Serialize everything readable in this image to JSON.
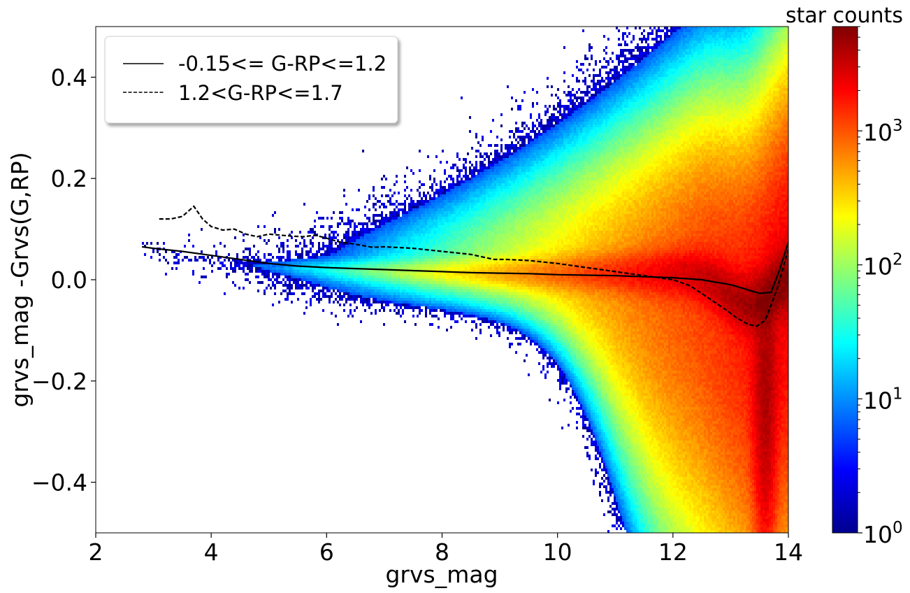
{
  "chart_data": {
    "type": "heatmap",
    "xlabel": "grvs_mag",
    "ylabel": "grvs_mag -Grvs(G,RP)",
    "xlim": [
      2,
      14
    ],
    "ylim": [
      -0.5,
      0.5
    ],
    "x_ticks": [
      2,
      4,
      6,
      8,
      10,
      12,
      14
    ],
    "x_tick_labels": [
      "2",
      "4",
      "6",
      "8",
      "10",
      "12",
      "14"
    ],
    "y_ticks": [
      0.4,
      0.2,
      0.0,
      -0.2,
      -0.4
    ],
    "y_tick_labels": [
      "0.4",
      "0.2",
      "0.0",
      "−0.2",
      "−0.4"
    ],
    "grid": false,
    "colormap": "jet",
    "colorbar": {
      "label": "star counts",
      "scale": "log",
      "range": [
        1,
        6000
      ],
      "ticks": [
        1,
        10,
        100,
        1000
      ],
      "tick_labels": [
        {
          "base": "10",
          "exp": "0"
        },
        {
          "base": "10",
          "exp": "1"
        },
        {
          "base": "10",
          "exp": "2"
        },
        {
          "base": "10",
          "exp": "3"
        }
      ]
    },
    "density_model": {
      "description_values": "approximate 2D histogram: main ridge near y=0.01, spreading wider toward faint magnitudes; upper plume; lower funnel converging near x=13.6",
      "x_range": [
        2.8,
        14
      ],
      "y_range": [
        -0.5,
        0.5
      ]
    },
    "legend": {
      "position": "upper-left",
      "entries": [
        {
          "label": "-0.15<= G-RP<=1.2",
          "style": "solid"
        },
        {
          "label": "1.2<G-RP<=1.7",
          "style": "dashed"
        }
      ]
    },
    "series": [
      {
        "name": "-0.15<= G-RP<=1.2",
        "style": "solid",
        "x": [
          2.8,
          3.0,
          3.5,
          4.0,
          4.5,
          5.0,
          5.5,
          6.0,
          6.5,
          7.0,
          7.5,
          8.0,
          8.5,
          9.0,
          9.5,
          10.0,
          10.5,
          11.0,
          11.5,
          12.0,
          12.5,
          13.0,
          13.3,
          13.5,
          13.7,
          13.85,
          14.0
        ],
        "y": [
          0.065,
          0.062,
          0.056,
          0.048,
          0.04,
          0.032,
          0.027,
          0.024,
          0.022,
          0.02,
          0.018,
          0.016,
          0.014,
          0.013,
          0.012,
          0.01,
          0.009,
          0.008,
          0.006,
          0.004,
          0.0,
          -0.01,
          -0.02,
          -0.027,
          -0.025,
          0.02,
          0.075
        ]
      },
      {
        "name": "1.2<G-RP<=1.7",
        "style": "dashed",
        "x": [
          3.1,
          3.3,
          3.5,
          3.6,
          3.7,
          3.85,
          4.0,
          4.2,
          4.4,
          4.6,
          4.8,
          5.0,
          5.2,
          5.4,
          5.6,
          5.8,
          6.0,
          6.2,
          6.4,
          6.6,
          6.8,
          7.0,
          7.5,
          8.0,
          8.5,
          8.9,
          9.1,
          9.5,
          10.0,
          10.5,
          11.0,
          11.5,
          12.0,
          12.3,
          12.6,
          12.9,
          13.1,
          13.3,
          13.45,
          13.6,
          13.8,
          14.0
        ],
        "y": [
          0.12,
          0.12,
          0.125,
          0.135,
          0.145,
          0.12,
          0.105,
          0.098,
          0.1,
          0.09,
          0.085,
          0.09,
          0.088,
          0.086,
          0.085,
          0.088,
          0.082,
          0.075,
          0.072,
          0.068,
          0.064,
          0.065,
          0.062,
          0.056,
          0.05,
          0.04,
          0.04,
          0.038,
          0.032,
          0.024,
          0.016,
          0.008,
          0.0,
          -0.012,
          -0.035,
          -0.058,
          -0.075,
          -0.088,
          -0.092,
          -0.08,
          -0.02,
          0.06
        ]
      }
    ]
  }
}
